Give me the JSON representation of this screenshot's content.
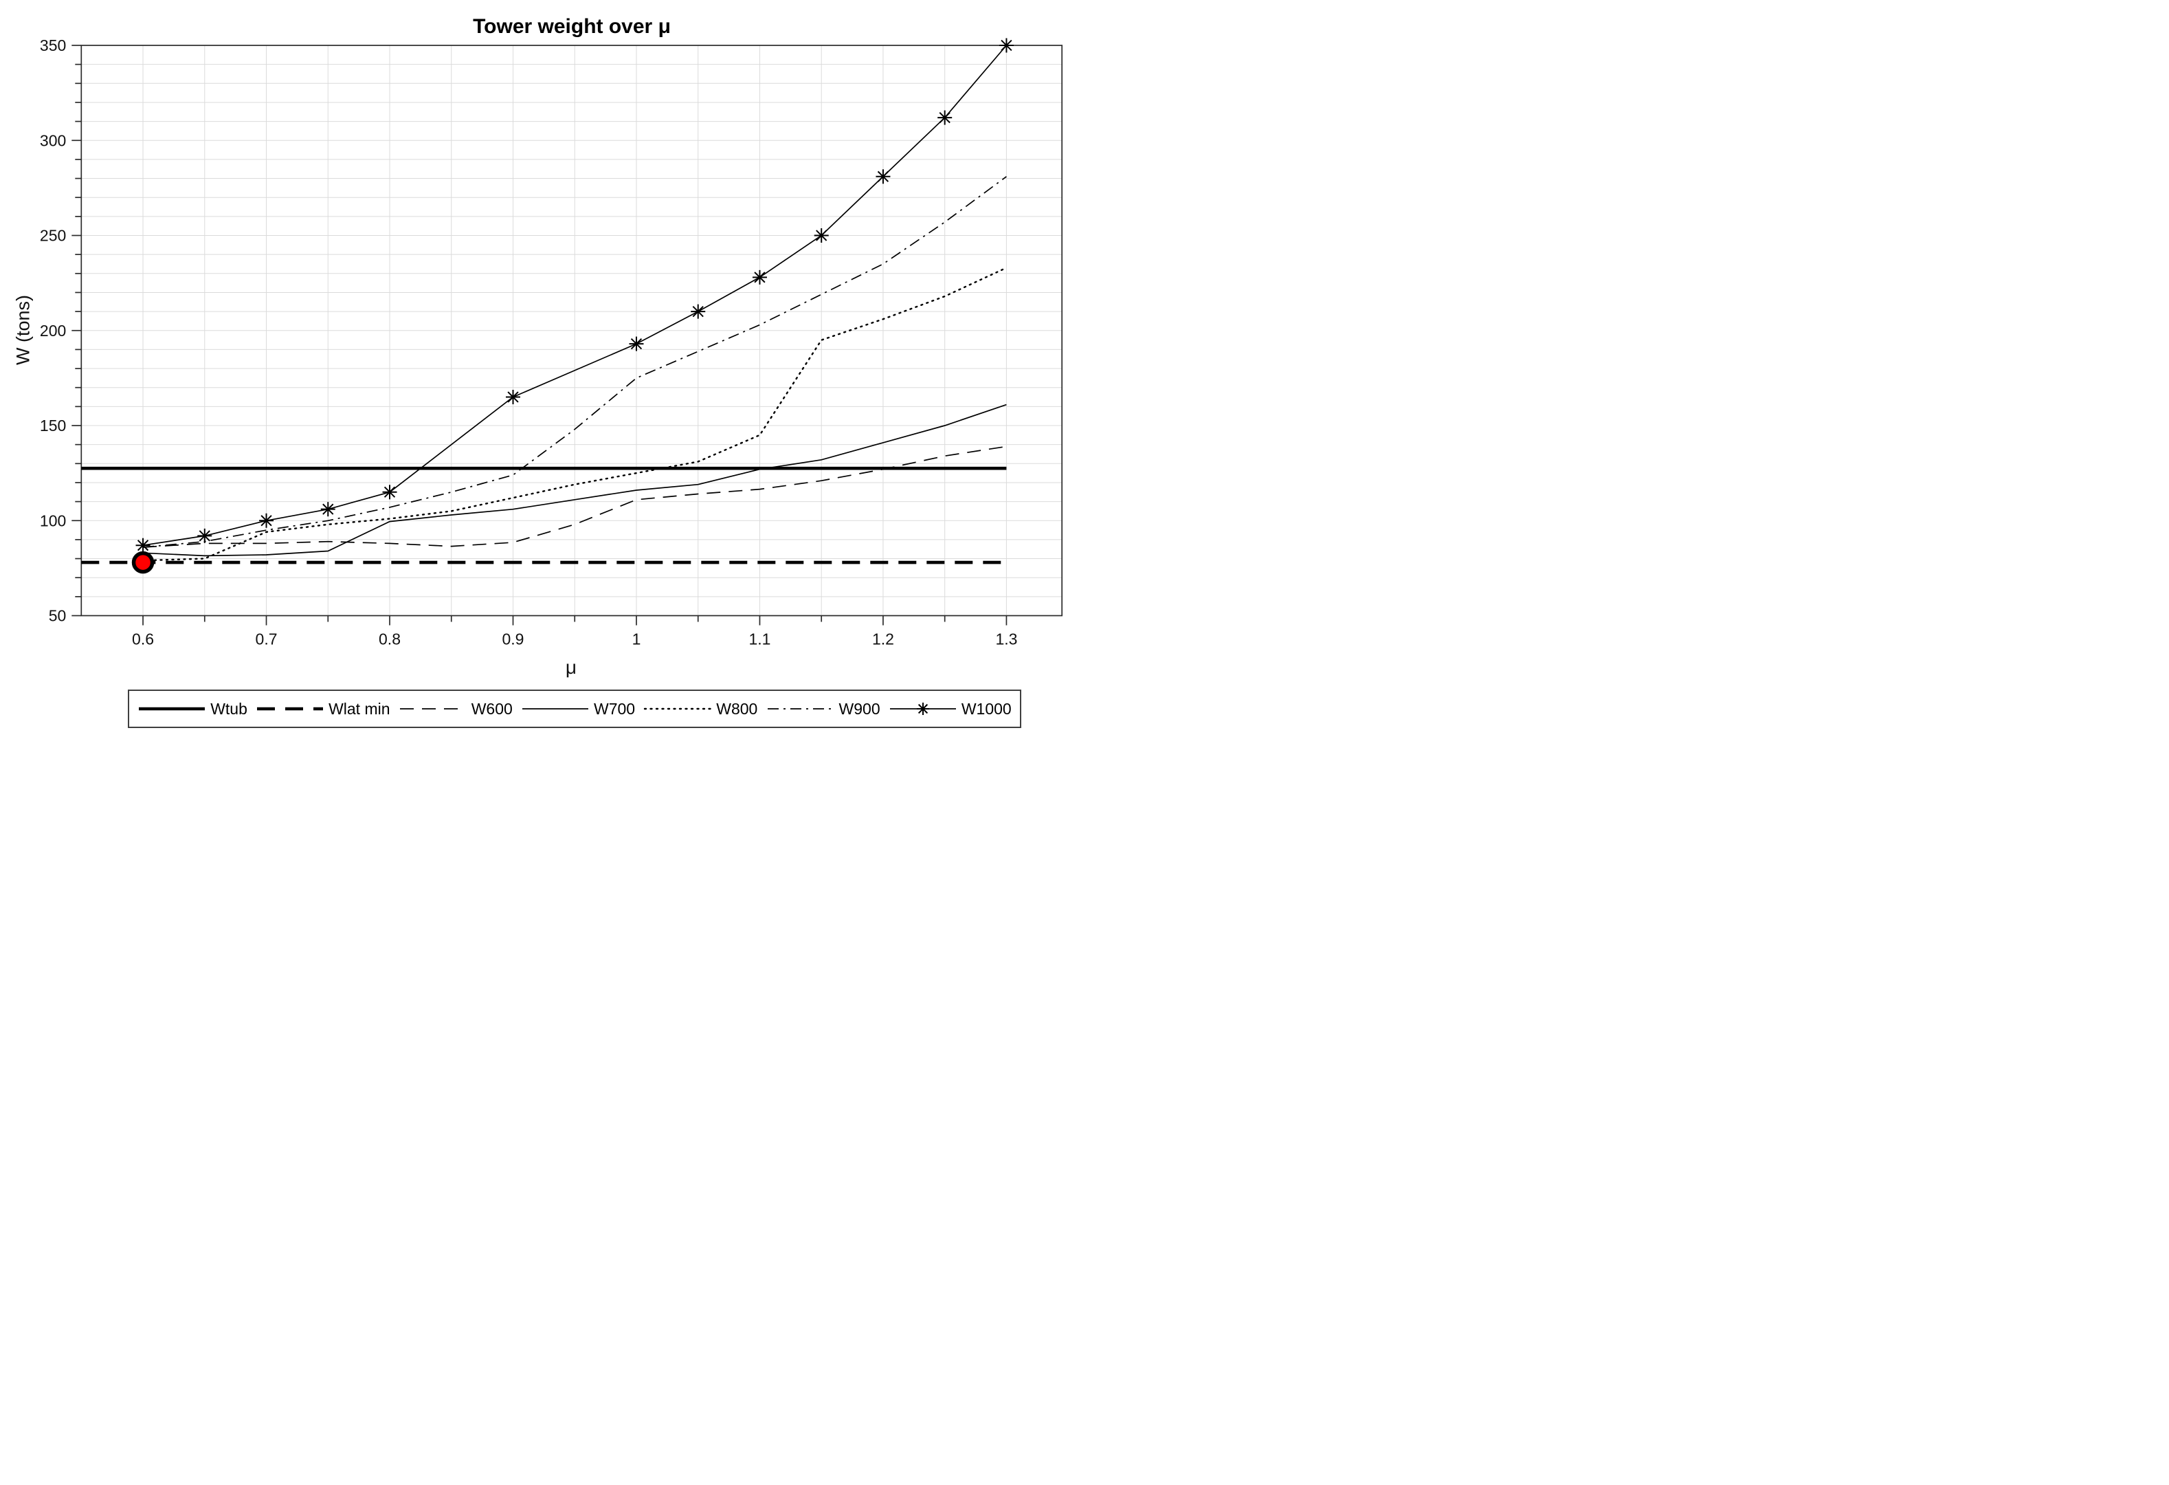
{
  "title": "Tower weight over μ",
  "axes": {
    "xlabel": "μ",
    "ylabel": "W (tons)",
    "xlim": [
      0.55,
      1.345
    ],
    "ylim": [
      50,
      350
    ],
    "x_ticks": {
      "values": [
        0.6,
        0.7,
        0.8,
        0.9,
        1.0,
        1.1,
        1.2,
        1.3
      ],
      "labels": [
        "0.6",
        "0.7",
        "0.8",
        "0.9",
        "1",
        "1.1",
        "1.2",
        "1.3"
      ]
    },
    "x_minor_step": 0.05,
    "y_ticks": {
      "values": [
        50,
        100,
        150,
        200,
        250,
        300,
        350
      ],
      "labels": [
        "50",
        "100",
        "150",
        "200",
        "250",
        "300",
        "350"
      ]
    },
    "y_minor_step": 10,
    "grid": "on",
    "grid_color": "#dbdbdb",
    "axis_color": "#2b2b2b"
  },
  "chart_data": {
    "type": "line",
    "title": "Tower weight over μ",
    "xlabel": "μ",
    "ylabel": "W (tons)",
    "xlim": [
      0.55,
      1.345
    ],
    "ylim": [
      50,
      350
    ],
    "legend_position": "south-outside",
    "series": [
      {
        "label": "Wtub",
        "style": "thick-solid",
        "color": "#000000",
        "x": [
          0.55,
          1.3
        ],
        "values": [
          127.5,
          127.5
        ]
      },
      {
        "label": "Wlat min",
        "style": "thick-dashed",
        "color": "#000000",
        "x": [
          0.55,
          1.3
        ],
        "values": [
          78,
          78
        ]
      },
      {
        "label": "W600",
        "style": "dashed",
        "color": "#000000",
        "x": [
          0.6,
          0.65,
          0.7,
          0.75,
          0.8,
          0.85,
          0.9,
          0.95,
          1.0,
          1.05,
          1.1,
          1.15,
          1.2,
          1.25,
          1.3
        ],
        "values": [
          86,
          88,
          88,
          89,
          88,
          86.5,
          88.5,
          98,
          111,
          114,
          116.5,
          121,
          127,
          134,
          139
        ]
      },
      {
        "label": "W700",
        "style": "solid",
        "color": "#000000",
        "x": [
          0.6,
          0.65,
          0.7,
          0.75,
          0.8,
          0.85,
          0.9,
          0.95,
          1.0,
          1.05,
          1.1,
          1.15,
          1.2,
          1.25,
          1.3
        ],
        "values": [
          83,
          81.5,
          82,
          84,
          99.5,
          103,
          106,
          111,
          116,
          119,
          127,
          132,
          141,
          150,
          161
        ]
      },
      {
        "label": "W800",
        "style": "dotted",
        "color": "#000000",
        "x": [
          0.6,
          0.65,
          0.7,
          0.75,
          0.8,
          0.85,
          0.9,
          0.95,
          1.0,
          1.05,
          1.1,
          1.15,
          1.2,
          1.25,
          1.3
        ],
        "values": [
          79,
          80,
          94,
          98,
          101,
          105,
          112,
          119,
          125,
          131,
          145,
          195,
          206,
          218,
          233
        ]
      },
      {
        "label": "W900",
        "style": "dashdot",
        "color": "#000000",
        "x": [
          0.6,
          0.65,
          0.7,
          0.75,
          0.8,
          0.85,
          0.9,
          0.95,
          1.0,
          1.05,
          1.1,
          1.15,
          1.2,
          1.25,
          1.3
        ],
        "values": [
          86,
          89,
          95,
          100,
          107,
          115,
          124,
          148,
          175,
          189,
          203,
          219,
          235,
          257,
          281
        ]
      },
      {
        "label": "W1000",
        "style": "solid-asterisk",
        "color": "#000000",
        "x": [
          0.6,
          0.65,
          0.7,
          0.75,
          0.8,
          0.9,
          1.0,
          1.05,
          1.1,
          1.15,
          1.2,
          1.25,
          1.3
        ],
        "values": [
          87,
          92,
          100,
          106,
          115,
          165,
          193,
          210,
          228,
          250,
          281,
          312,
          350
        ]
      }
    ],
    "red_marker": {
      "x": 0.6,
      "y": 78,
      "fill": "#ff0000",
      "edge": "#000000"
    }
  }
}
